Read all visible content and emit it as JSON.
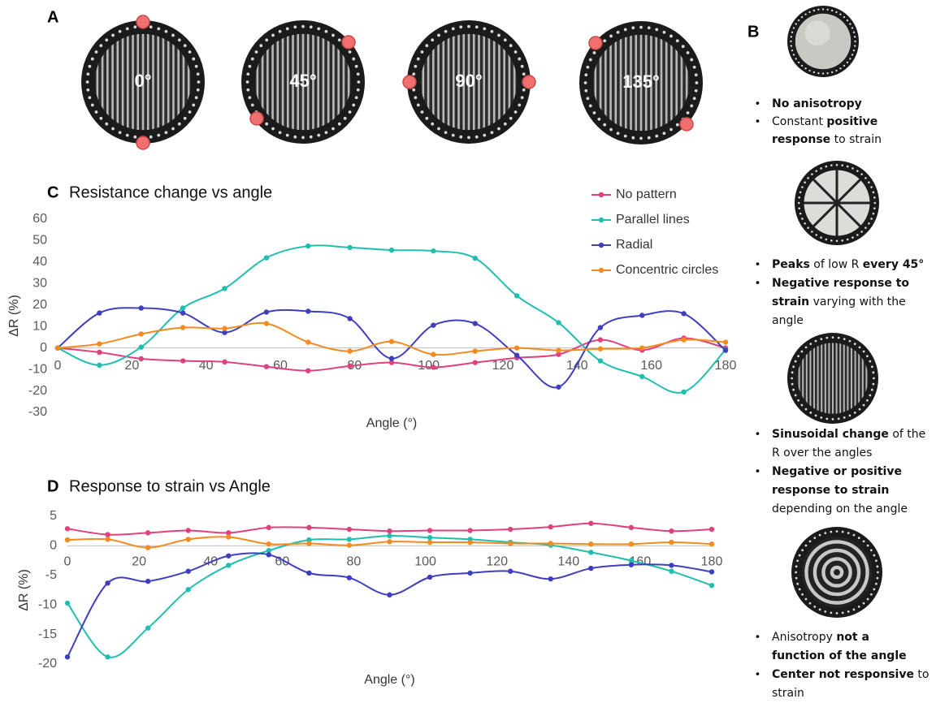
{
  "panel_labels": {
    "a": "A",
    "b": "B",
    "c": "C",
    "d": "D"
  },
  "panel_a": {
    "photo_labels": [
      "0°",
      "45°",
      "90°",
      "135°"
    ]
  },
  "panel_b": [
    {
      "bullets": [
        [
          [
            {
              "text": "No anisotropy",
              "bold": true
            }
          ]
        ],
        [
          [
            {
              "text": "Constant ",
              "bold": false
            },
            {
              "text": "positive",
              "bold": true
            }
          ],
          [
            {
              "text": "response",
              "bold": true
            },
            {
              "text": " to strain",
              "bold": false
            }
          ]
        ]
      ]
    },
    {
      "bullets": [
        [
          [
            {
              "text": "Peaks",
              "bold": true
            },
            {
              "text": " of low R ",
              "bold": false
            },
            {
              "text": "every 45°",
              "bold": true
            }
          ]
        ],
        [
          [
            {
              "text": "Negative response to",
              "bold": true
            }
          ],
          [
            {
              "text": "strain",
              "bold": true
            },
            {
              "text": " varying with the",
              "bold": false
            }
          ],
          [
            {
              "text": "angle",
              "bold": false
            }
          ]
        ]
      ]
    },
    {
      "bullets": [
        [
          [
            {
              "text": "Sinusoidal change",
              "bold": true
            },
            {
              "text": " of the",
              "bold": false
            }
          ],
          [
            {
              "text": "R over the angles",
              "bold": false
            }
          ]
        ],
        [
          [
            {
              "text": "Negative or positive",
              "bold": true
            }
          ],
          [
            {
              "text": "response to strain",
              "bold": true
            }
          ],
          [
            {
              "text": "depending on the angle",
              "bold": false
            }
          ]
        ]
      ]
    },
    {
      "bullets": [
        [
          [
            {
              "text": "Anisotropy ",
              "bold": false
            },
            {
              "text": "not a",
              "bold": true
            }
          ],
          [
            {
              "text": "function of the angle",
              "bold": true
            }
          ]
        ],
        [
          [
            {
              "text": "Center not responsive",
              "bold": true
            },
            {
              "text": " to",
              "bold": false
            }
          ],
          [
            {
              "text": "strain",
              "bold": false
            }
          ]
        ]
      ]
    }
  ],
  "chart_data": [
    {
      "type": "line",
      "title": "Resistance change vs angle",
      "x_label": "Angle (°)",
      "y_label": "ΔR (%)",
      "x": [
        0,
        11.25,
        22.5,
        33.75,
        45,
        56.25,
        67.5,
        78.75,
        90,
        101.25,
        112.5,
        123.75,
        135,
        146.25,
        157.5,
        168.75,
        180
      ],
      "xlim": [
        0,
        180
      ],
      "xticks": [
        0,
        20,
        40,
        60,
        80,
        100,
        120,
        140,
        160,
        180
      ],
      "ylim": [
        -30,
        60
      ],
      "yticks": [
        -30,
        -20,
        -10,
        0,
        10,
        20,
        30,
        40,
        50,
        60
      ],
      "grid": false,
      "legend": "upper right",
      "series": [
        {
          "name": "No pattern",
          "color": "#e0407f",
          "values": [
            0,
            -2,
            -5,
            -6,
            -6.5,
            -8.7,
            -10.6,
            -8.4,
            -6.8,
            -9,
            -6.8,
            -4.6,
            -3,
            3.8,
            -1,
            4.6,
            0
          ]
        },
        {
          "name": "Parallel lines",
          "color": "#1fbfb0",
          "values": [
            0,
            -8,
            0.4,
            18.6,
            27.7,
            42,
            47.5,
            46.8,
            45.6,
            45.2,
            41.8,
            24.3,
            11.8,
            -6,
            -13.3,
            -20.5,
            -0.8
          ]
        },
        {
          "name": "Radial",
          "color": "#3e3fbf",
          "values": [
            0,
            16.3,
            18.6,
            16.3,
            7.2,
            16.7,
            17.1,
            13.7,
            -4.9,
            10.6,
            11.4,
            -3.4,
            -18.2,
            9.5,
            15.2,
            16,
            -1.1
          ]
        },
        {
          "name": "Concentric circles",
          "color": "#f58a1f",
          "values": [
            0,
            1.9,
            6.5,
            9.5,
            9.1,
            11.4,
            2.7,
            -1.5,
            3,
            -3,
            -1.5,
            0,
            -1.1,
            -0.4,
            0,
            3.8,
            2.7
          ]
        }
      ]
    },
    {
      "type": "line",
      "title": "Response to strain vs Angle",
      "x_label": "Angle (°)",
      "y_label": "ΔR (%)",
      "x": [
        0,
        11.25,
        22.5,
        33.75,
        45,
        56.25,
        67.5,
        78.75,
        90,
        101.25,
        112.5,
        123.75,
        135,
        146.25,
        157.5,
        168.75,
        180
      ],
      "xlim": [
        0,
        180
      ],
      "xticks": [
        0,
        20,
        40,
        60,
        80,
        100,
        120,
        140,
        160,
        180
      ],
      "ylim": [
        -20,
        5
      ],
      "yticks": [
        -20,
        -15,
        -10,
        -5,
        0,
        5
      ],
      "grid": false,
      "series": [
        {
          "color": "#e0407f",
          "values": [
            2.9,
            1.9,
            2.2,
            2.6,
            2.2,
            3.1,
            3.1,
            2.8,
            2.5,
            2.6,
            2.6,
            2.8,
            3.2,
            3.8,
            3.1,
            2.5,
            2.8
          ]
        },
        {
          "color": "#1fbfb0",
          "values": [
            -9.7,
            -18.8,
            -13.9,
            -7.4,
            -3.3,
            -0.8,
            1,
            1.1,
            1.7,
            1.4,
            1.1,
            0.6,
            0.1,
            -1.1,
            -2.5,
            -4.3,
            -6.7
          ]
        },
        {
          "color": "#3e3fbf",
          "values": [
            -18.8,
            -6.3,
            -6,
            -4.3,
            -1.7,
            -1.5,
            -4.6,
            -5.4,
            -8.3,
            -5.3,
            -4.6,
            -4.3,
            -5.6,
            -3.8,
            -3.2,
            -3.3,
            -4.4
          ]
        },
        {
          "color": "#f58a1f",
          "values": [
            1,
            1.1,
            -0.3,
            1.1,
            1.5,
            0.3,
            0.4,
            0.1,
            0.7,
            0.6,
            0.6,
            0.4,
            0.4,
            0.3,
            0.3,
            0.6,
            0.3
          ]
        }
      ]
    }
  ]
}
